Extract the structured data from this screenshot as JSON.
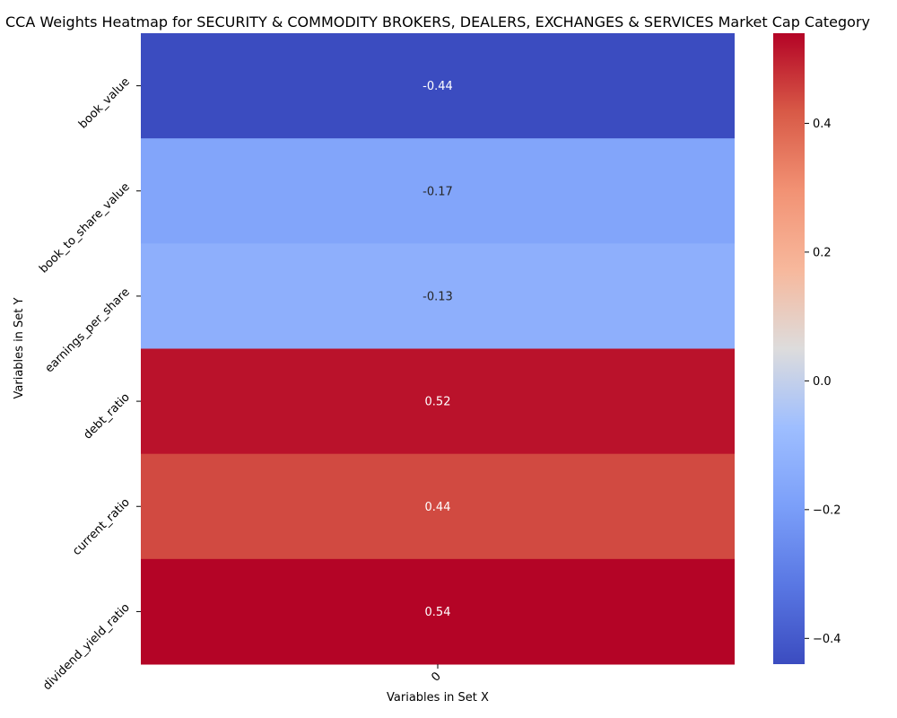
{
  "chart_data": {
    "type": "heatmap",
    "title": "CCA Weights Heatmap for SECURITY & COMMODITY BROKERS, DEALERS, EXCHANGES & SERVICES Market Cap Category",
    "xlabel": "Variables in Set X",
    "ylabel": "Variables in Set Y",
    "x_categories": [
      "0"
    ],
    "y_categories": [
      "book_value",
      "book_to_share_value",
      "earnings_per_share",
      "debt_ratio",
      "current_ratio",
      "dividend_yield_ratio"
    ],
    "values": [
      [
        -0.44
      ],
      [
        -0.17
      ],
      [
        -0.13
      ],
      [
        0.52
      ],
      [
        0.44
      ],
      [
        0.54
      ]
    ],
    "value_labels": [
      "-0.44",
      "-0.17",
      "-0.13",
      "0.52",
      "0.44",
      "0.54"
    ],
    "colormap": "coolwarm",
    "colorbar": {
      "vmin": -0.44,
      "vmax": 0.54,
      "ticks": [
        -0.4,
        -0.2,
        0.0,
        0.2,
        0.4
      ],
      "tick_labels": [
        "−0.4",
        "−0.2",
        "0.0",
        "0.2",
        "0.4"
      ]
    }
  }
}
